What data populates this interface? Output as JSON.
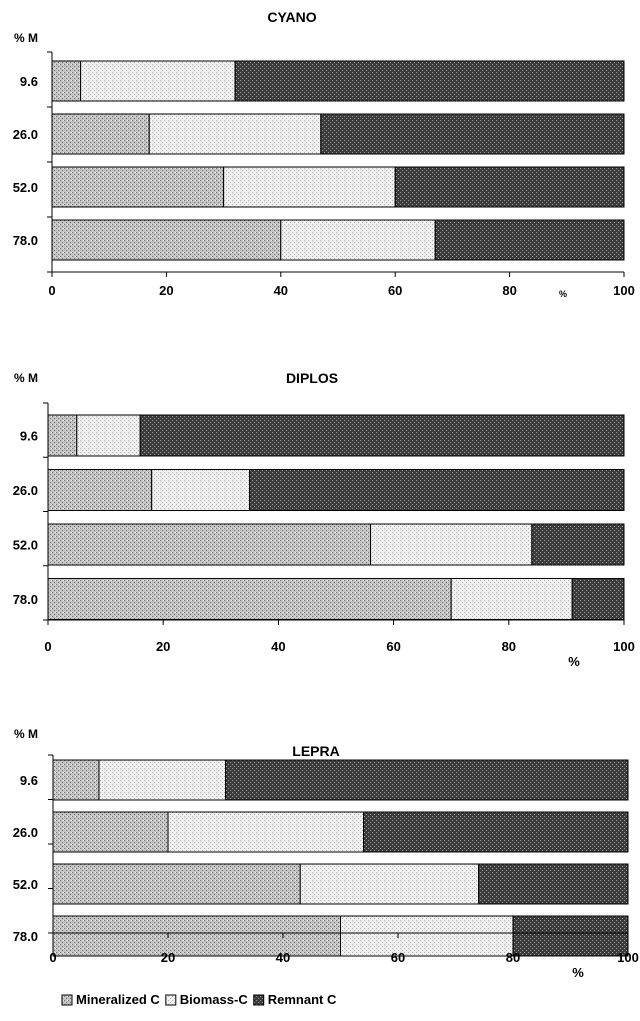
{
  "chart_data": [
    {
      "type": "bar",
      "orientation": "horizontal",
      "stacked": true,
      "title": "CYANO",
      "ylabel": "% M",
      "xlabel": "%",
      "categories": [
        "9.6",
        "26.0",
        "52.0",
        "78.0"
      ],
      "xlim": [
        0,
        100
      ],
      "xticks": [
        "0",
        "20",
        "40",
        "60",
        "80",
        "100"
      ],
      "series": [
        {
          "name": "Mineralized C",
          "values": [
            5,
            17,
            30,
            40
          ]
        },
        {
          "name": "Biomass-C",
          "values": [
            27,
            30,
            30,
            27
          ]
        },
        {
          "name": "Remnant C",
          "values": [
            68,
            53,
            40,
            33
          ]
        }
      ]
    },
    {
      "type": "bar",
      "orientation": "horizontal",
      "stacked": true,
      "title": "DIPLOS",
      "ylabel": "% M",
      "xlabel": "%",
      "categories": [
        "9.6",
        "26.0",
        "52.0",
        "78.0"
      ],
      "xlim": [
        0,
        100
      ],
      "xticks": [
        "0",
        "20",
        "40",
        "60",
        "80",
        "100"
      ],
      "series": [
        {
          "name": "Mineralized C",
          "values": [
            5,
            18,
            56,
            70
          ]
        },
        {
          "name": "Biomass-C",
          "values": [
            11,
            17,
            28,
            21
          ]
        },
        {
          "name": "Remnant C",
          "values": [
            84,
            65,
            16,
            9
          ]
        }
      ]
    },
    {
      "type": "bar",
      "orientation": "horizontal",
      "stacked": true,
      "title": "LEPRA",
      "ylabel": "% M",
      "xlabel": "%",
      "categories": [
        "9.6",
        "26.0",
        "52.0",
        "78.0"
      ],
      "xlim": [
        0,
        100
      ],
      "xticks": [
        "0",
        "20",
        "40",
        "60",
        "80",
        "100"
      ],
      "series": [
        {
          "name": "Mineralized C",
          "values": [
            8,
            20,
            43,
            50
          ]
        },
        {
          "name": "Biomass-C",
          "values": [
            22,
            34,
            31,
            30
          ]
        },
        {
          "name": "Remnant C",
          "values": [
            70,
            46,
            26,
            20
          ]
        }
      ]
    }
  ],
  "legend": {
    "placement": "bottom-left",
    "items": [
      {
        "label": "Mineralized C",
        "pattern": "mineralized"
      },
      {
        "label": "Biomass-C",
        "pattern": "biomass"
      },
      {
        "label": "Remnant C",
        "pattern": "remnant"
      }
    ]
  },
  "colors": {
    "mineralized": "#bdbdbd",
    "biomass": "#ececec",
    "remnant": "#3a3a3a"
  }
}
